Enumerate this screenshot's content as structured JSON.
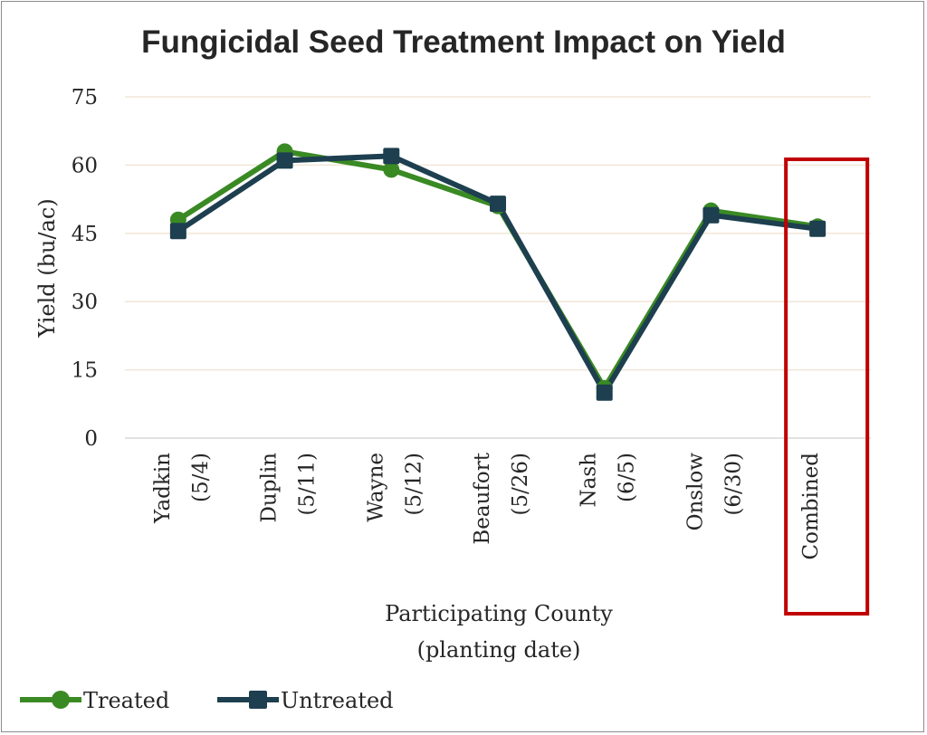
{
  "chart_data": {
    "type": "line",
    "title": "Fungicidal Seed Treatment Impact on Yield",
    "ylabel": "Yield (bu/ac)",
    "xlabel_lines": [
      "Participating County",
      "(planting date)"
    ],
    "ylim": [
      0,
      75
    ],
    "yticks": [
      0,
      15,
      30,
      45,
      60,
      75
    ],
    "grid": true,
    "legend_position": "bottom-left",
    "categories": [
      [
        "Yadkin",
        "(5/4)"
      ],
      [
        "Duplin",
        "(5/11)"
      ],
      [
        "Wayne",
        "(5/12)"
      ],
      [
        "Beaufort",
        "(5/26)"
      ],
      [
        "Nash",
        "(6/5)"
      ],
      [
        "Onslow",
        "(6/30)"
      ],
      [
        "Combined"
      ]
    ],
    "series": [
      {
        "name": "Treated",
        "color": "#3a8a24",
        "marker": "circle",
        "values": [
          48,
          63,
          59,
          51,
          11,
          50,
          46.5
        ]
      },
      {
        "name": "Untreated",
        "color": "#1d3f4f",
        "marker": "square",
        "values": [
          45.5,
          61,
          62,
          51.5,
          10,
          49,
          46
        ]
      }
    ],
    "highlight": {
      "category": "Combined",
      "color": "#c00000"
    }
  }
}
